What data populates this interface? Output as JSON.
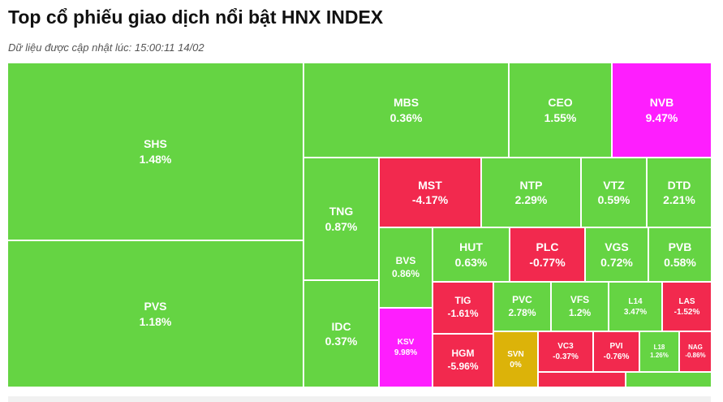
{
  "header": {
    "title": "Top cổ phiếu giao dịch nổi bật HNX INDEX",
    "updated_label": "Dữ liệu được cập nhật lúc: 15:00:11 14/02"
  },
  "colors": {
    "up": "#65d443",
    "down": "#f2294e",
    "ceiling": "#fe1efe",
    "reference": "#dcb309"
  },
  "tiles": {
    "shs": {
      "ticker": "SHS",
      "change": "1.48%"
    },
    "pvs": {
      "ticker": "PVS",
      "change": "1.18%"
    },
    "mbs": {
      "ticker": "MBS",
      "change": "0.36%"
    },
    "ceo": {
      "ticker": "CEO",
      "change": "1.55%"
    },
    "nvb": {
      "ticker": "NVB",
      "change": "9.47%"
    },
    "tng": {
      "ticker": "TNG",
      "change": "0.87%"
    },
    "idc": {
      "ticker": "IDC",
      "change": "0.37%"
    },
    "mst": {
      "ticker": "MST",
      "change": "-4.17%"
    },
    "ntp": {
      "ticker": "NTP",
      "change": "2.29%"
    },
    "vtz": {
      "ticker": "VTZ",
      "change": "0.59%"
    },
    "dtd": {
      "ticker": "DTD",
      "change": "2.21%"
    },
    "bvs": {
      "ticker": "BVS",
      "change": "0.86%"
    },
    "hut": {
      "ticker": "HUT",
      "change": "0.63%"
    },
    "plc": {
      "ticker": "PLC",
      "change": "-0.77%"
    },
    "vgs": {
      "ticker": "VGS",
      "change": "0.72%"
    },
    "pvb": {
      "ticker": "PVB",
      "change": "0.58%"
    },
    "tig": {
      "ticker": "TIG",
      "change": "-1.61%"
    },
    "pvc": {
      "ticker": "PVC",
      "change": "2.78%"
    },
    "vfs": {
      "ticker": "VFS",
      "change": "1.2%"
    },
    "l14": {
      "ticker": "L14",
      "change": "3.47%"
    },
    "las": {
      "ticker": "LAS",
      "change": "-1.52%"
    },
    "ksv": {
      "ticker": "KSV",
      "change": "9.98%"
    },
    "hgm": {
      "ticker": "HGM",
      "change": "-5.96%"
    },
    "svn": {
      "ticker": "SVN",
      "change": "0%"
    },
    "vc3": {
      "ticker": "VC3",
      "change": "-0.37%"
    },
    "pvi": {
      "ticker": "PVI",
      "change": "-0.76%"
    },
    "l18": {
      "ticker": "L18",
      "change": "1.26%"
    },
    "nag": {
      "ticker": "NAG",
      "change": "-0.86%"
    }
  }
}
